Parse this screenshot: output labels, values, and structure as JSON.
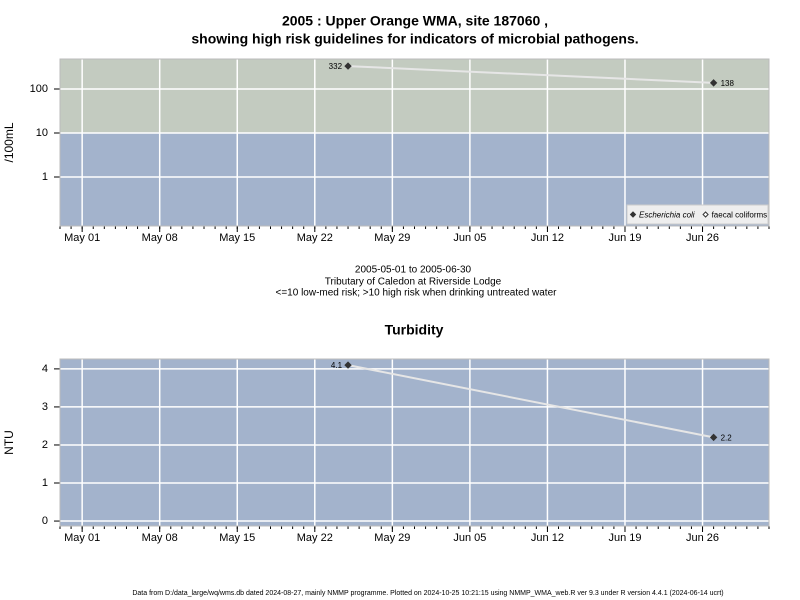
{
  "title": [
    "2005 : Upper Orange WMA, site 187060 ,",
    "showing high risk guidelines for indicators of microbial pathogens."
  ],
  "notes": [
    "2005-05-01 to 2005-06-30",
    "Tributary of Caledon at Riverside Lodge",
    "<=10 low-med risk; >10 high risk when drinking untreated water"
  ],
  "footer": "Data from D:/data_large/wq/wms.db dated 2024-08-27, mainly NMMP programme. Plotted on 2024-10-25 10:21:15 using NMMP_WMA_web.R ver 9.3 under R version 4.4.1 (2024-06-14 ucrt)",
  "chart_data": [
    {
      "type": "line",
      "ylabel": "/100mL",
      "log_scale": true,
      "xlim": [
        "2005-04-29",
        "2005-07-02"
      ],
      "xticks": [
        {
          "value": "2005-05-01",
          "label": "May 01"
        },
        {
          "value": "2005-05-08",
          "label": "May 08"
        },
        {
          "value": "2005-05-15",
          "label": "May 15"
        },
        {
          "value": "2005-05-22",
          "label": "May 22"
        },
        {
          "value": "2005-05-29",
          "label": "May 29"
        },
        {
          "value": "2005-06-05",
          "label": "Jun 05"
        },
        {
          "value": "2005-06-12",
          "label": "Jun 12"
        },
        {
          "value": "2005-06-19",
          "label": "Jun 19"
        },
        {
          "value": "2005-06-26",
          "label": "Jun 26"
        }
      ],
      "ylim": [
        0.077,
        481
      ],
      "yticks": [
        1,
        10,
        100
      ],
      "risk_threshold": 10,
      "band_colors": {
        "low": "#a3b3cc",
        "high": "#c3cbc0"
      },
      "grid": true,
      "legend": "bottom-right",
      "line_color": "#e6e6e6",
      "series": [
        {
          "name": "Escherichia coli",
          "marker": "filled",
          "font_style": "italic",
          "color": "#333333",
          "x": [
            "2005-05-25",
            "2005-06-27"
          ],
          "values": [
            332,
            138
          ]
        },
        {
          "name": "faecal coliforms",
          "marker": "open",
          "font_style": "normal",
          "color": "#333333",
          "x": [],
          "values": []
        }
      ]
    },
    {
      "type": "line",
      "title": "Turbidity",
      "ylabel": "NTU",
      "log_scale": false,
      "xlim": [
        "2005-04-29",
        "2005-07-02"
      ],
      "xticks": [
        {
          "value": "2005-05-01",
          "label": "May 01"
        },
        {
          "value": "2005-05-08",
          "label": "May 08"
        },
        {
          "value": "2005-05-15",
          "label": "May 15"
        },
        {
          "value": "2005-05-22",
          "label": "May 22"
        },
        {
          "value": "2005-05-29",
          "label": "May 29"
        },
        {
          "value": "2005-06-05",
          "label": "Jun 05"
        },
        {
          "value": "2005-06-12",
          "label": "Jun 12"
        },
        {
          "value": "2005-06-19",
          "label": "Jun 19"
        },
        {
          "value": "2005-06-26",
          "label": "Jun 26"
        }
      ],
      "ylim": [
        -0.13,
        4.26
      ],
      "yticks": [
        0,
        1,
        2,
        3,
        4
      ],
      "background": "#a3b3cc",
      "grid": true,
      "line_color": "#e6e6e6",
      "series": [
        {
          "name": "Turbidity",
          "marker": "filled",
          "color": "#333333",
          "x": [
            "2005-05-25",
            "2005-06-27"
          ],
          "values": [
            4.1,
            2.2
          ]
        }
      ]
    }
  ]
}
